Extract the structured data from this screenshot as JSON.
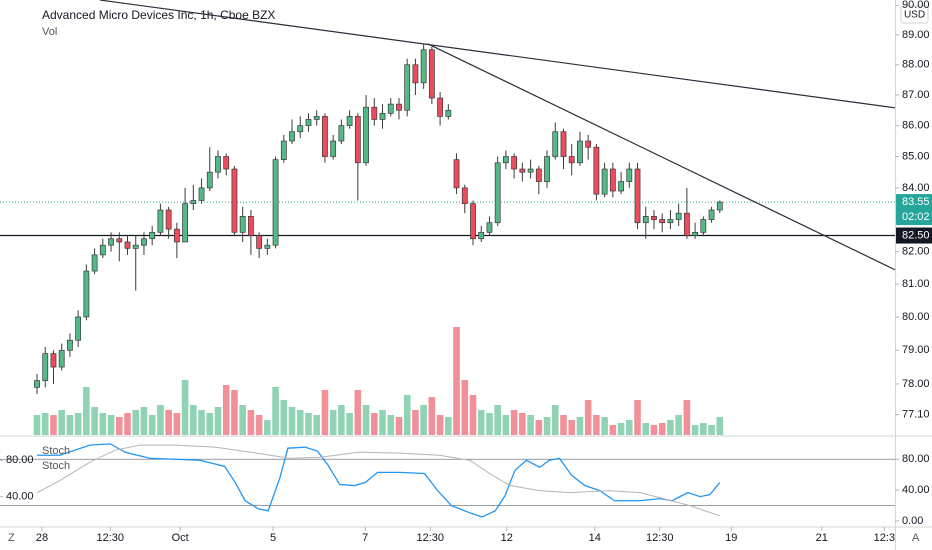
{
  "toolbar": {
    "left_button": "Z",
    "right_button": "A"
  },
  "chart_data": [
    {
      "type": "candlestick",
      "title": "Advanced Micro Devices Inc, 1h, Cboe BZX",
      "currency": "USD",
      "log_scale": true,
      "up_color": "#53b987",
      "down_color": "#eb4d5c",
      "xlim": [
        -4.5,
        104.3
      ],
      "xticks": [
        {
          "value": 0.6,
          "label": "28"
        },
        {
          "value": 8.9,
          "label": "12:30"
        },
        {
          "value": 17.4,
          "label": "Oct"
        },
        {
          "value": 28.7,
          "label": "5"
        },
        {
          "value": 39.9,
          "label": "7"
        },
        {
          "value": 47.8,
          "label": "12:30"
        },
        {
          "value": 57.1,
          "label": "12"
        },
        {
          "value": 67.8,
          "label": "14"
        },
        {
          "value": 75.7,
          "label": "12:30"
        },
        {
          "value": 84.4,
          "label": "19"
        },
        {
          "value": 95.4,
          "label": "21"
        },
        {
          "value": 103.0,
          "label": "12:3"
        }
      ],
      "ylim": [
        76.51,
        90.18
      ],
      "yticks": [
        {
          "value": 77.1,
          "label": "77.10"
        },
        {
          "value": 78,
          "label": "78.00"
        },
        {
          "value": 79,
          "label": "79.00"
        },
        {
          "value": 80,
          "label": "80.00"
        },
        {
          "value": 81,
          "label": "81.00"
        },
        {
          "value": 82,
          "label": "82.00"
        },
        {
          "value": 84,
          "label": "84.00"
        },
        {
          "value": 85,
          "label": "85.00"
        },
        {
          "value": 86,
          "label": "86.00"
        },
        {
          "value": 87,
          "label": "87.00"
        },
        {
          "value": 88,
          "label": "88.00"
        },
        {
          "value": 89,
          "label": "89.00"
        },
        {
          "value": 90,
          "label": "90.00"
        }
      ],
      "open": [
        77.9,
        78.1,
        78.9,
        78.5,
        79.0,
        79.3,
        80.0,
        81.4,
        81.9,
        82.2,
        82.4,
        82.3,
        82.1,
        82.2,
        82.4,
        82.6,
        83.3,
        82.7,
        82.3,
        83.5,
        83.6,
        84.0,
        84.5,
        85.0,
        84.6,
        82.6,
        83.1,
        82.5,
        82.1,
        82.2,
        84.9,
        85.5,
        85.8,
        86.0,
        86.2,
        86.3,
        85.0,
        85.5,
        86.0,
        86.3,
        84.8,
        86.6,
        86.2,
        86.4,
        86.7,
        86.5,
        88.0,
        87.4,
        88.5,
        86.9,
        86.3,
        84.9,
        84.0,
        83.5,
        82.4,
        82.6,
        82.9,
        84.8,
        85.0,
        84.6,
        84.5,
        84.6,
        84.2,
        85.0,
        85.8,
        85.0,
        84.8,
        85.5,
        85.3,
        83.8,
        84.6,
        83.9,
        84.2,
        84.6,
        82.9,
        83.1,
        83.0,
        82.9,
        83.0,
        83.2,
        82.5,
        82.6,
        83.0,
        83.3
      ],
      "high": [
        78.3,
        79.1,
        79.0,
        79.2,
        79.5,
        80.2,
        81.6,
        82.1,
        82.4,
        82.6,
        82.6,
        82.5,
        82.5,
        82.6,
        82.8,
        83.5,
        83.4,
        82.9,
        84.0,
        84.1,
        84.3,
        85.3,
        85.2,
        85.1,
        84.7,
        83.4,
        83.3,
        82.6,
        82.4,
        85.0,
        85.7,
        86.2,
        86.3,
        86.4,
        86.5,
        86.4,
        85.7,
        86.2,
        86.5,
        86.4,
        87.0,
        86.9,
        86.7,
        86.9,
        86.9,
        88.2,
        88.2,
        88.7,
        88.6,
        87.1,
        86.7,
        85.1,
        84.1,
        83.6,
        82.8,
        83.1,
        85.0,
        85.2,
        85.1,
        84.8,
        84.9,
        84.7,
        85.2,
        86.1,
        85.9,
        85.4,
        85.8,
        85.7,
        85.4,
        84.8,
        84.8,
        84.5,
        84.8,
        84.8,
        83.4,
        83.3,
        83.2,
        83.3,
        83.5,
        84.0,
        82.9,
        83.1,
        83.4,
        83.6
      ],
      "low": [
        77.7,
        77.9,
        78.0,
        78.4,
        78.8,
        79.1,
        79.9,
        81.3,
        81.8,
        82.0,
        81.7,
        81.9,
        80.8,
        81.9,
        82.2,
        82.5,
        82.4,
        81.8,
        82.3,
        83.3,
        83.5,
        83.9,
        84.3,
        84.4,
        82.5,
        82.3,
        81.9,
        81.8,
        81.9,
        82.1,
        84.8,
        85.4,
        85.6,
        85.8,
        86.0,
        84.8,
        84.9,
        85.4,
        85.9,
        83.6,
        84.7,
        86.0,
        85.9,
        86.3,
        86.2,
        86.3,
        87.0,
        87.2,
        86.7,
        86.0,
        86.2,
        83.8,
        83.2,
        82.2,
        82.3,
        82.5,
        82.8,
        84.6,
        84.3,
        84.2,
        84.3,
        83.8,
        84.0,
        84.9,
        84.6,
        84.4,
        84.7,
        84.9,
        83.6,
        83.7,
        83.7,
        83.8,
        84.0,
        82.7,
        82.4,
        82.7,
        82.6,
        82.7,
        82.8,
        82.4,
        82.4,
        82.5,
        82.9,
        83.2
      ],
      "close": [
        78.1,
        78.9,
        78.5,
        79.0,
        79.3,
        80.0,
        81.4,
        81.9,
        82.2,
        82.4,
        82.3,
        82.1,
        82.2,
        82.4,
        82.6,
        83.3,
        82.7,
        82.3,
        83.5,
        83.6,
        84.0,
        84.5,
        85.0,
        84.6,
        82.6,
        83.1,
        82.5,
        82.1,
        82.2,
        84.9,
        85.5,
        85.8,
        86.0,
        86.2,
        86.3,
        85.0,
        85.5,
        86.0,
        86.3,
        84.8,
        86.6,
        86.2,
        86.4,
        86.7,
        86.5,
        88.0,
        87.4,
        88.5,
        86.9,
        86.3,
        86.5,
        84.0,
        83.5,
        82.4,
        82.6,
        82.9,
        84.8,
        85.0,
        84.6,
        84.5,
        84.6,
        84.2,
        85.0,
        85.8,
        85.0,
        84.8,
        85.5,
        85.3,
        83.8,
        84.6,
        83.9,
        84.2,
        84.6,
        82.9,
        83.1,
        83.0,
        82.9,
        83.0,
        83.2,
        82.5,
        82.6,
        83.0,
        83.3,
        83.55
      ],
      "volume": {
        "name": "Vol",
        "ylim": [
          0,
          120
        ],
        "up_color": "#8fd3b4",
        "down_color": "#f2909a",
        "values": [
          20,
          22,
          20,
          25,
          20,
          22,
          48,
          28,
          22,
          20,
          18,
          22,
          25,
          28,
          20,
          30,
          25,
          22,
          55,
          30,
          25,
          22,
          28,
          50,
          45,
          30,
          25,
          20,
          15,
          48,
          35,
          28,
          25,
          22,
          20,
          45,
          25,
          30,
          22,
          45,
          30,
          22,
          25,
          20,
          18,
          40,
          25,
          30,
          38,
          20,
          18,
          108,
          55,
          40,
          25,
          22,
          30,
          20,
          25,
          22,
          20,
          15,
          18,
          30,
          20,
          15,
          18,
          35,
          20,
          18,
          10,
          12,
          15,
          35,
          12,
          10,
          12,
          15,
          20,
          35,
          10,
          12,
          10,
          18
        ]
      },
      "last_price": {
        "value": 83.55,
        "label": "83.55",
        "color": "#26a69a"
      },
      "countdown": "02:02",
      "horizontal_line": {
        "value": 82.5,
        "label": "82.50"
      },
      "trendlines": [
        [
          [
            7.65,
            90.18
          ],
          [
            104.3,
            86.58
          ]
        ],
        [
          [
            47.5,
            88.7
          ],
          [
            104.3,
            81.44
          ]
        ]
      ]
    },
    {
      "type": "line",
      "ylim": [
        -6.6,
        108.9
      ],
      "yticks": [
        {
          "value": 80,
          "label": "80.00"
        },
        {
          "value": 40,
          "label": "40.00"
        },
        {
          "value": 0,
          "label": "0.00"
        }
      ],
      "y2lim": [
        7.8,
        105.6
      ],
      "y2ticks": [
        {
          "value": 80,
          "label": "80.00"
        },
        {
          "value": 40,
          "label": "40.00"
        }
      ],
      "bands": [
        80,
        20
      ],
      "series": [
        {
          "name": "Stoch",
          "color": "#2196f3",
          "x": [
            0,
            2.8,
            6.4,
            8.9,
            10.7,
            13.7,
            19.8,
            22.8,
            24.1,
            25.3,
            26.9,
            28.1,
            29.5,
            30.5,
            32.6,
            34.1,
            35.4,
            36.8,
            38.6,
            39.9,
            41.4,
            44.1,
            47.1,
            48.7,
            50.4,
            52.6,
            54.1,
            55.7,
            56.9,
            58.1,
            59.5,
            61.1,
            62.3,
            63.5,
            65.0,
            66.6,
            68.4,
            70.2,
            73.3,
            75.7,
            77.2,
            79.1,
            80.6,
            81.8,
            83.0
          ],
          "values": [
            85.2,
            85.2,
            98.4,
            100,
            89.2,
            81.3,
            78.7,
            70.8,
            49.8,
            26.2,
            15.7,
            13.1,
            55.1,
            94.4,
            95.7,
            90.5,
            72.1,
            47.2,
            45.9,
            49.8,
            63.0,
            63.0,
            61.6,
            39.3,
            19.7,
            10.5,
            5.2,
            13.1,
            32.8,
            65.6,
            78.7,
            69.5,
            78.7,
            81.3,
            59.0,
            45.9,
            39.3,
            26.2,
            26.2,
            28.9,
            26.2,
            36.7,
            31.5,
            34.1,
            49.8
          ]
        },
        {
          "name": "Stoch",
          "color": "#b5b5b5",
          "x": [
            0,
            2.8,
            6.4,
            9.5,
            12.5,
            16.8,
            21.6,
            25.9,
            30.7,
            34.4,
            39.2,
            44.1,
            48.9,
            52.6,
            55.0,
            57.5,
            61.1,
            64.8,
            69.6,
            73.3,
            75.7,
            79.4,
            83.0
          ],
          "values": [
            36.7,
            52.5,
            76.1,
            91.8,
            98.4,
            98.4,
            95.7,
            89.2,
            81.3,
            82.6,
            89.2,
            87.9,
            85.2,
            78.7,
            61.6,
            45.9,
            39.3,
            36.7,
            39.3,
            36.7,
            30.2,
            19.7,
            6.6
          ]
        }
      ]
    }
  ]
}
